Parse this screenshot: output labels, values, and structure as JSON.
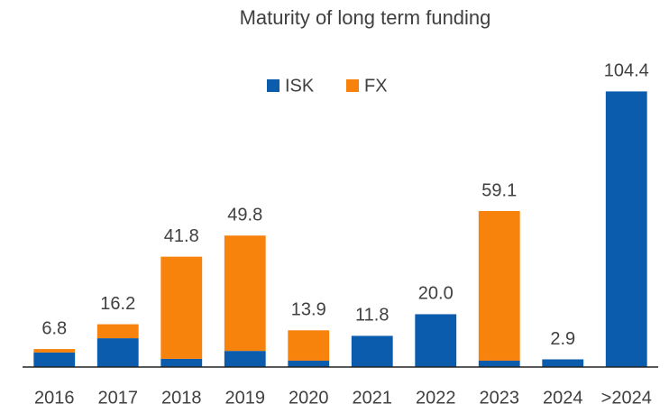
{
  "chart_data": {
    "type": "stacked_bar",
    "title": "Maturity of long term funding",
    "categories": [
      "2016",
      "2017",
      "2018",
      "2019",
      "2020",
      "2021",
      "2022",
      "2023",
      "2024",
      ">2024"
    ],
    "series": [
      {
        "name": "ISK",
        "color": "#0b5cad",
        "values": [
          5.5,
          10.9,
          3.1,
          6.1,
          2.4,
          11.8,
          20.0,
          2.4,
          2.9,
          104.4
        ]
      },
      {
        "name": "FX",
        "color": "#f7820c",
        "values": [
          1.3,
          5.3,
          38.7,
          43.7,
          11.5,
          0,
          0,
          56.7,
          0,
          0
        ]
      }
    ],
    "totals": [
      6.8,
      16.2,
      41.8,
      49.8,
      13.9,
      11.8,
      20.0,
      59.1,
      2.9,
      104.4
    ],
    "total_labels": [
      "6.8",
      "16.2",
      "41.8",
      "49.8",
      "13.9",
      "11.8",
      "20.0",
      "59.1",
      "2.9",
      "104.4"
    ],
    "ylim": [
      0,
      110
    ],
    "legend": "top"
  }
}
